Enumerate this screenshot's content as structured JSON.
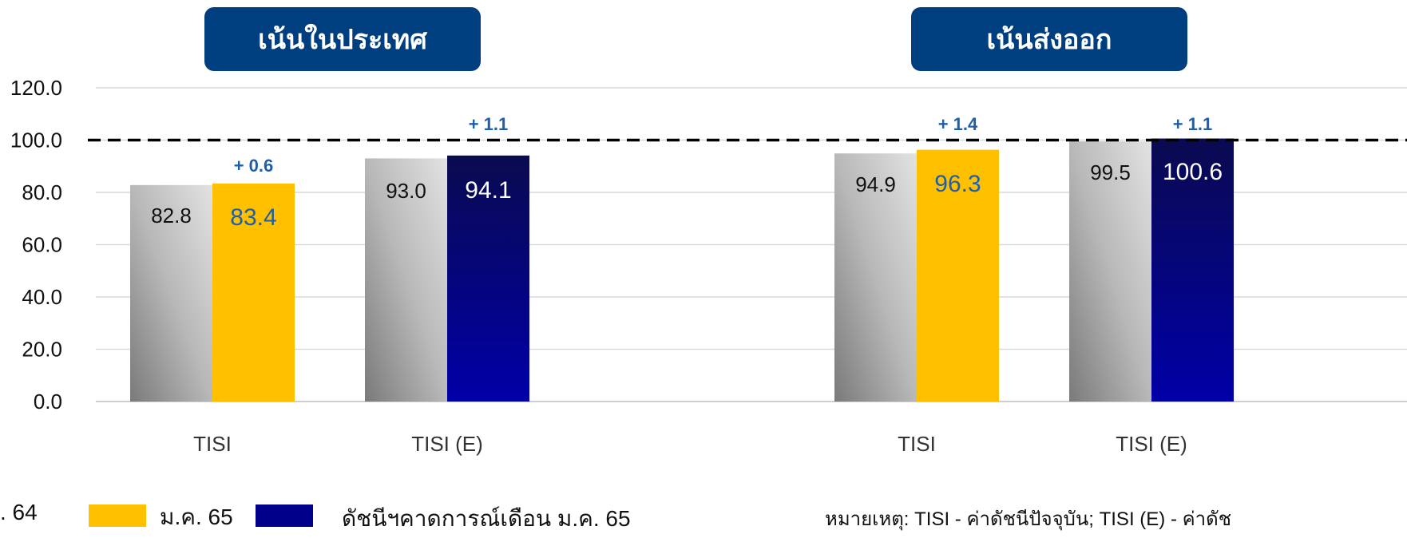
{
  "chart_data": {
    "type": "bar",
    "groups": [
      "เน้นในประเทศ",
      "เน้นส่งออก"
    ],
    "categories": [
      "TISI",
      "TISI (E)",
      "TISI",
      "TISI (E)"
    ],
    "series": [
      {
        "name": ". 64",
        "values": [
          82.8,
          93.0,
          94.9,
          99.5
        ],
        "color": "#a6a6a6"
      },
      {
        "name": "ม.ค. 65",
        "values": [
          83.4,
          94.1,
          96.3,
          100.6
        ],
        "colors": [
          "#ffc000",
          "#00008b",
          "#ffc000",
          "#00008b"
        ]
      }
    ],
    "current_labels": [
      "83.4",
      "94.1",
      "96.3",
      "100.6"
    ],
    "changes": [
      "+ 0.6",
      "+ 1.1",
      "+ 1.4",
      "+ 1.1"
    ],
    "ylim": [
      0,
      120
    ],
    "yticks": [
      "0.0",
      "20.0",
      "40.0",
      "60.0",
      "80.0",
      "100.0",
      "120.0"
    ],
    "reference_line": 100,
    "grid": true
  },
  "legend": {
    "prev_label": ". 64",
    "curr_label": "ม.ค. 65",
    "expect_label": "ดัชนีฯคาดการณ์เดือน ม.ค. 65"
  },
  "note": "หมายเหตุ: TISI - ค่าดัชนีปัจจุบัน; TISI (E) - ค่าดัช",
  "colors": {
    "title_bg": "#003f7f",
    "yellow": "#ffc000",
    "navy": "#00008b",
    "change_text": "#1f5fa8",
    "yellow_label": "#1f5fa8"
  }
}
